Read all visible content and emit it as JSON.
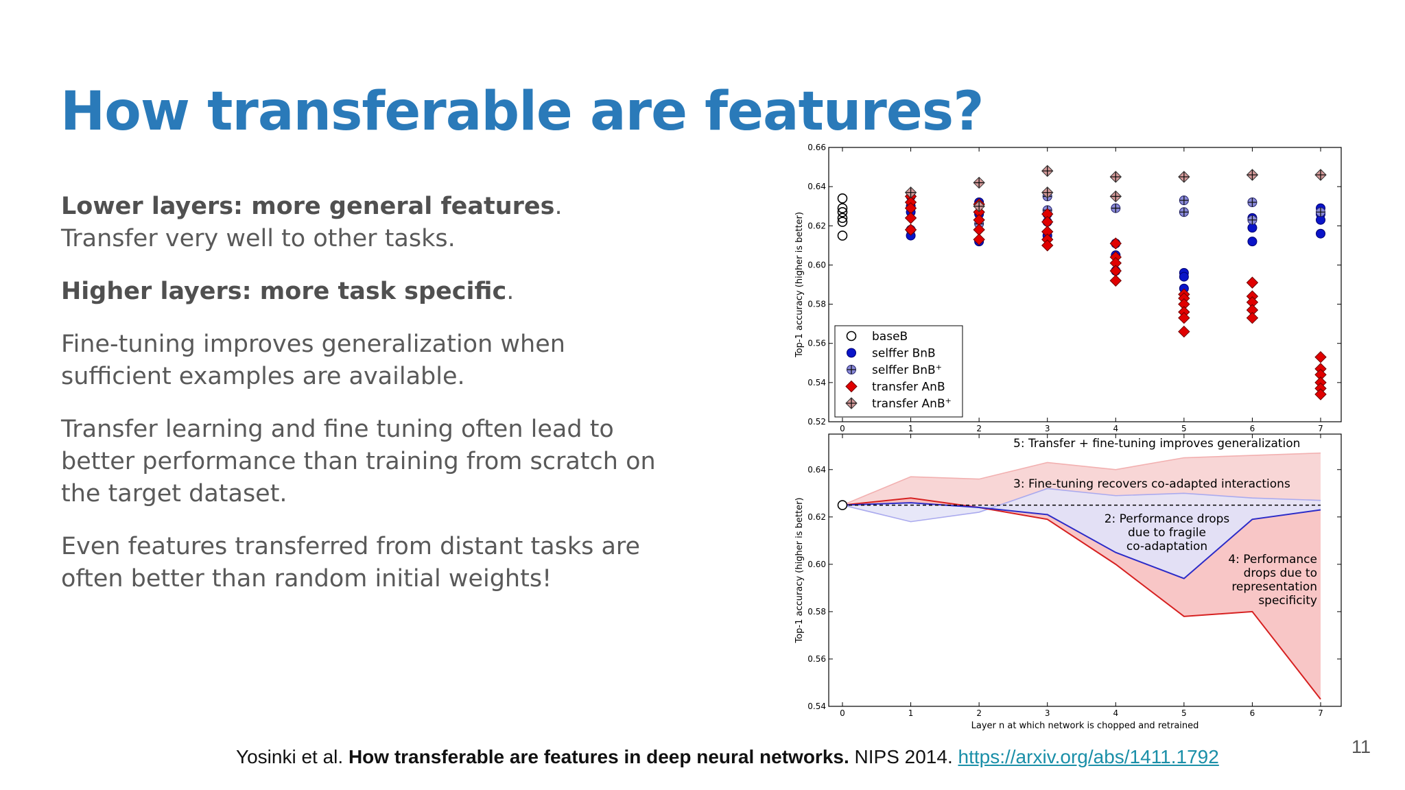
{
  "slide": {
    "title": "How transferable are features?",
    "bullets": [
      {
        "bold": "Lower layers: more general features",
        "rest": ". Transfer very well to other tasks."
      },
      {
        "bold": "Higher layers: more task specific",
        "rest": "."
      },
      {
        "bold": "",
        "rest": "Fine-tuning improves generalization when sufficient examples are available."
      },
      {
        "bold": "",
        "rest": "Transfer learning and fine tuning often lead to better performance than training from scratch on the target dataset."
      },
      {
        "bold": "",
        "rest": "Even features transferred from distant tasks are often better than random initial weights!"
      }
    ],
    "citation": {
      "authors": "Yosinki et al. ",
      "paper": "How transferable are features in deep neural networks.",
      "venue": " NIPS 2014. ",
      "link": "https://arxiv.org/abs/1411.1792"
    },
    "page_number": "11"
  },
  "chart_data": [
    {
      "type": "scatter",
      "ylabel": "Top-1 accuracy (higher is better)",
      "xlim": [
        0,
        7
      ],
      "ylim": [
        0.52,
        0.66
      ],
      "xticks": [
        "0",
        "1",
        "2",
        "3",
        "4",
        "5",
        "6",
        "7"
      ],
      "yticks": [
        "0.52",
        "0.54",
        "0.56",
        "0.58",
        "0.60",
        "0.62",
        "0.64",
        "0.66"
      ],
      "legend_position": "bottom-left",
      "series": [
        {
          "name": "baseB",
          "marker": "open-circle",
          "color": "#000000",
          "points": [
            [
              0,
              0.634
            ],
            [
              0,
              0.629
            ],
            [
              0,
              0.627
            ],
            [
              0,
              0.624
            ],
            [
              0,
              0.622
            ],
            [
              0,
              0.615
            ]
          ]
        },
        {
          "name": "selffer BnB",
          "marker": "circle",
          "color": "#0a14c8",
          "points": [
            [
              1,
              0.635
            ],
            [
              1,
              0.63
            ],
            [
              1,
              0.627
            ],
            [
              1,
              0.615
            ],
            [
              2,
              0.632
            ],
            [
              2,
              0.626
            ],
            [
              2,
              0.612
            ],
            [
              3,
              0.626
            ],
            [
              3,
              0.622
            ],
            [
              3,
              0.615
            ],
            [
              4,
              0.611
            ],
            [
              4,
              0.605
            ],
            [
              4,
              0.597
            ],
            [
              5,
              0.596
            ],
            [
              5,
              0.594
            ],
            [
              5,
              0.588
            ],
            [
              6,
              0.624
            ],
            [
              6,
              0.619
            ],
            [
              6,
              0.612
            ],
            [
              7,
              0.629
            ],
            [
              7,
              0.626
            ],
            [
              7,
              0.623
            ],
            [
              7,
              0.616
            ]
          ]
        },
        {
          "name": "selffer BnB+",
          "marker": "circle-plus",
          "color": "#8a8ad8",
          "points": [
            [
              1,
              0.618
            ],
            [
              2,
              0.621
            ],
            [
              3,
              0.635
            ],
            [
              3,
              0.628
            ],
            [
              4,
              0.629
            ],
            [
              5,
              0.633
            ],
            [
              5,
              0.627
            ],
            [
              6,
              0.632
            ],
            [
              6,
              0.623
            ],
            [
              7,
              0.627
            ]
          ]
        },
        {
          "name": "transfer AnB",
          "marker": "diamond",
          "color": "#e00000",
          "points": [
            [
              1,
              0.635
            ],
            [
              1,
              0.632
            ],
            [
              1,
              0.629
            ],
            [
              1,
              0.624
            ],
            [
              1,
              0.618
            ],
            [
              2,
              0.631
            ],
            [
              2,
              0.627
            ],
            [
              2,
              0.623
            ],
            [
              2,
              0.618
            ],
            [
              2,
              0.613
            ],
            [
              3,
              0.626
            ],
            [
              3,
              0.622
            ],
            [
              3,
              0.617
            ],
            [
              3,
              0.613
            ],
            [
              3,
              0.61
            ],
            [
              4,
              0.611
            ],
            [
              4,
              0.604
            ],
            [
              4,
              0.601
            ],
            [
              4,
              0.597
            ],
            [
              4,
              0.592
            ],
            [
              5,
              0.585
            ],
            [
              5,
              0.583
            ],
            [
              5,
              0.58
            ],
            [
              5,
              0.576
            ],
            [
              5,
              0.573
            ],
            [
              5,
              0.566
            ],
            [
              6,
              0.591
            ],
            [
              6,
              0.584
            ],
            [
              6,
              0.581
            ],
            [
              6,
              0.577
            ],
            [
              6,
              0.573
            ],
            [
              7,
              0.553
            ],
            [
              7,
              0.547
            ],
            [
              7,
              0.544
            ],
            [
              7,
              0.54
            ],
            [
              7,
              0.537
            ],
            [
              7,
              0.534
            ]
          ]
        },
        {
          "name": "transfer AnB+",
          "marker": "diamond-plus",
          "color": "#d49999",
          "points": [
            [
              1,
              0.637
            ],
            [
              2,
              0.642
            ],
            [
              2,
              0.63
            ],
            [
              3,
              0.648
            ],
            [
              3,
              0.637
            ],
            [
              4,
              0.645
            ],
            [
              4,
              0.635
            ],
            [
              5,
              0.645
            ],
            [
              6,
              0.646
            ],
            [
              7,
              0.646
            ]
          ]
        }
      ]
    },
    {
      "type": "line",
      "ylabel": "Top-1 accuracy (higher is better)",
      "xlabel": "Layer n at which network is chopped and retrained",
      "xlim": [
        0,
        7
      ],
      "ylim": [
        0.54,
        0.655
      ],
      "xticks": [
        "0",
        "1",
        "2",
        "3",
        "4",
        "5",
        "6",
        "7"
      ],
      "yticks": [
        "0.54",
        "0.56",
        "0.58",
        "0.60",
        "0.62",
        "0.64"
      ],
      "base_point": [
        0,
        0.625
      ],
      "baseline": 0.625,
      "lines": {
        "selffer_BnB": {
          "color": "#2b2bc8",
          "values": [
            0.625,
            0.626,
            0.624,
            0.621,
            0.605,
            0.594,
            0.619,
            0.623
          ]
        },
        "selffer_BnB_plus": {
          "color": "#aaaaee",
          "values": [
            0.625,
            0.618,
            0.622,
            0.632,
            0.629,
            0.63,
            0.628,
            0.627
          ]
        },
        "transfer_AnB": {
          "color": "#d62020",
          "values": [
            0.625,
            0.628,
            0.624,
            0.619,
            0.6,
            0.578,
            0.58,
            0.543
          ]
        },
        "transfer_AnB_plus": {
          "color": "#f2b0b0",
          "values": [
            0.625,
            0.637,
            0.636,
            0.643,
            0.64,
            0.645,
            0.646,
            0.647
          ]
        }
      },
      "annotations": [
        {
          "text": "5: Transfer + fine-tuning improves generalization",
          "lines": [
            "5: Transfer + fine-tuning improves generalization"
          ]
        },
        {
          "text": "3: Fine-tuning recovers co-adapted interactions",
          "lines": [
            "3: Fine-tuning recovers co-adapted interactions"
          ]
        },
        {
          "text": "2: Performance drops due to fragile co-adaptation",
          "lines": [
            "2: Performance drops",
            "due to fragile",
            "co-adaptation"
          ]
        },
        {
          "text": "4: Performance drops due to representation specificity",
          "lines": [
            "4: Performance",
            "drops due to",
            "representation",
            "specificity"
          ]
        }
      ]
    }
  ]
}
